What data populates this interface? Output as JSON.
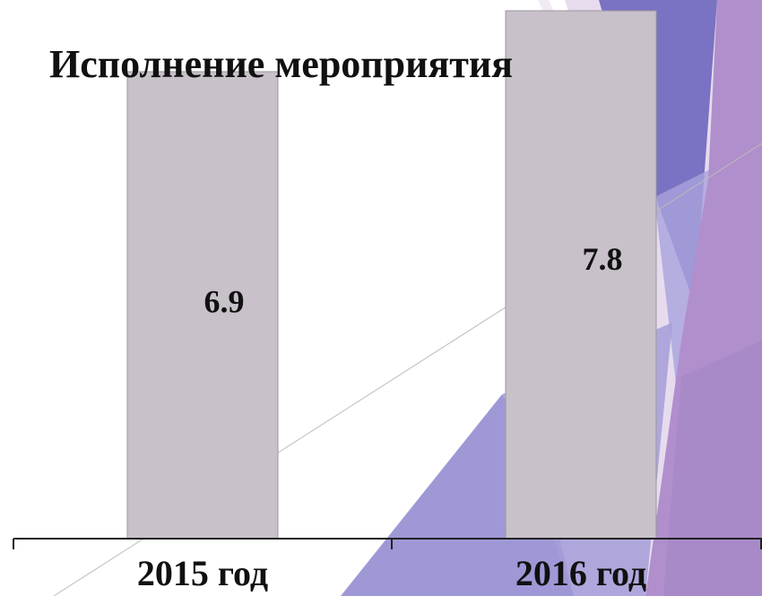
{
  "chart_data": {
    "type": "bar",
    "title": "Исполнение мероприятия",
    "categories": [
      "2015 год",
      "2016 год"
    ],
    "values": [
      6.9,
      7.8
    ],
    "color": "#c8c1c9"
  }
}
